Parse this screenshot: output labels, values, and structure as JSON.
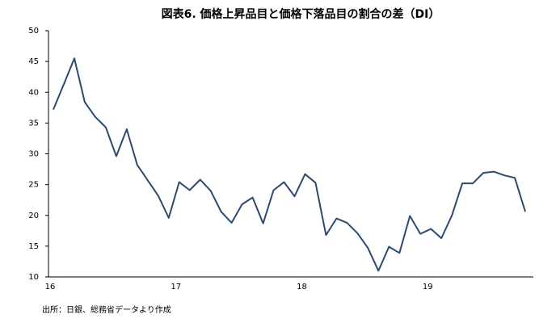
{
  "chart_data": {
    "type": "line",
    "title": "図表6. 価格上昇品目と価格下落品目の割合の差（DI）",
    "note": "出所：日銀、総務省データより作成",
    "categories": [
      "16",
      null,
      null,
      null,
      null,
      null,
      null,
      null,
      null,
      null,
      null,
      null,
      "17",
      null,
      null,
      null,
      null,
      null,
      null,
      null,
      null,
      null,
      null,
      null,
      "18",
      null,
      null,
      null,
      null,
      null,
      null,
      null,
      null,
      null,
      null,
      null,
      "19",
      null,
      null,
      null,
      null,
      null,
      null,
      null,
      null,
      null
    ],
    "values": [
      37.2,
      41.3,
      45.5,
      38.4,
      36.0,
      34.3,
      29.6,
      34.0,
      28.2,
      25.7,
      23.2,
      19.6,
      25.4,
      24.1,
      25.8,
      24.0,
      20.6,
      18.8,
      21.8,
      22.9,
      18.7,
      24.1,
      25.4,
      23.1,
      26.7,
      25.3,
      16.8,
      19.5,
      18.8,
      17.1,
      14.7,
      11.0,
      14.9,
      13.9,
      19.9,
      17.0,
      17.8,
      16.3,
      20.0,
      25.2,
      25.2,
      26.9,
      27.1,
      26.5,
      26.1,
      20.6
    ],
    "color": "#2b4a6e",
    "ylim": [
      10,
      50
    ],
    "yticks": [
      10,
      15,
      20,
      25,
      30,
      35,
      40,
      45,
      50
    ]
  }
}
